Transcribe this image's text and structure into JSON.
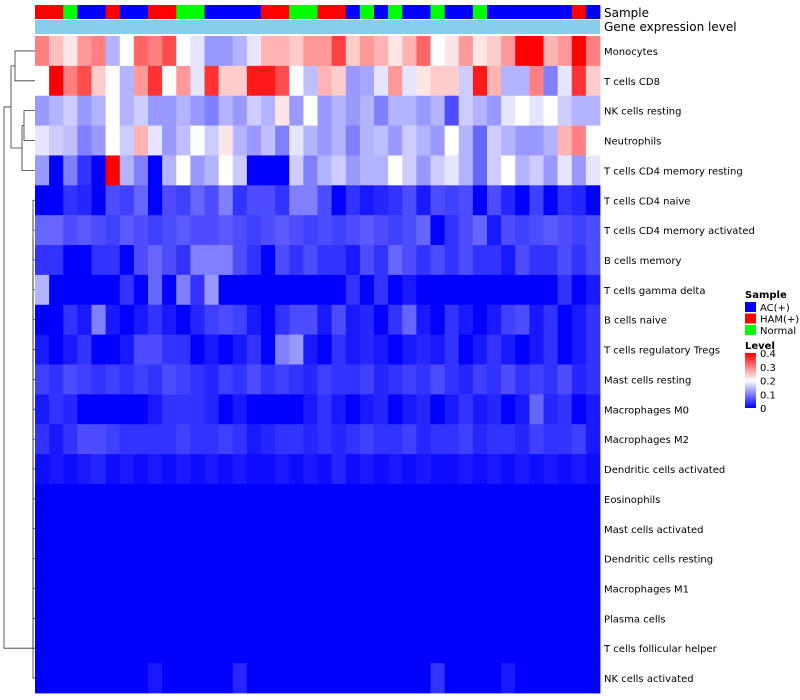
{
  "chart_data": {
    "type": "heatmap",
    "title": "",
    "annotation_rows": [
      "Sample",
      "Gene expression level"
    ],
    "rows": [
      "Monocytes",
      "T cells CD8",
      "NK cells resting",
      "Neutrophils",
      "T cells CD4 memory resting",
      "T cells CD4 naive",
      "T cells CD4 memory activated",
      "B cells memory",
      "T cells gamma delta",
      "B cells naive",
      "T cells regulatory  Tregs",
      "Mast cells resting",
      "Macrophages M0",
      "Macrophages M2",
      "Dendritic cells activated",
      "Eosinophils",
      "Mast cells activated",
      "Dendritic cells resting",
      "Macrophages M1",
      "Plasma cells",
      "T cells follicular helper",
      "NK cells activated"
    ],
    "samples": [
      "HAM(+)",
      "HAM(+)",
      "Normal",
      "AC(+)",
      "AC(+)",
      "HAM(+)",
      "AC(+)",
      "AC(+)",
      "HAM(+)",
      "HAM(+)",
      "Normal",
      "Normal",
      "AC(+)",
      "AC(+)",
      "AC(+)",
      "AC(+)",
      "HAM(+)",
      "HAM(+)",
      "Normal",
      "Normal",
      "HAM(+)",
      "HAM(+)",
      "AC(+)",
      "Normal",
      "AC(+)",
      "Normal",
      "AC(+)",
      "AC(+)",
      "Normal",
      "AC(+)",
      "AC(+)",
      "Normal",
      "AC(+)",
      "AC(+)",
      "AC(+)",
      "AC(+)",
      "AC(+)",
      "AC(+)",
      "HAM(+)",
      "AC(+)"
    ],
    "values": [
      [
        0.3,
        0.25,
        0.22,
        0.28,
        0.3,
        0.14,
        0.2,
        0.32,
        0.3,
        0.34,
        0.2,
        0.18,
        0.12,
        0.12,
        0.14,
        0.18,
        0.26,
        0.26,
        0.24,
        0.28,
        0.28,
        0.35,
        0.24,
        0.28,
        0.26,
        0.22,
        0.26,
        0.32,
        0.2,
        0.22,
        0.28,
        0.22,
        0.24,
        0.28,
        0.4,
        0.4,
        0.26,
        0.28,
        0.4,
        0.3
      ],
      [
        0.2,
        0.4,
        0.3,
        0.34,
        0.24,
        0.2,
        0.14,
        0.28,
        0.36,
        0.2,
        0.28,
        0.18,
        0.36,
        0.24,
        0.24,
        0.38,
        0.38,
        0.34,
        0.2,
        0.15,
        0.26,
        0.24,
        0.12,
        0.13,
        0.18,
        0.28,
        0.18,
        0.22,
        0.24,
        0.24,
        0.16,
        0.38,
        0.26,
        0.14,
        0.14,
        0.3,
        0.1,
        0.18,
        0.36,
        0.24
      ],
      [
        0.12,
        0.14,
        0.16,
        0.12,
        0.14,
        0.2,
        0.14,
        0.16,
        0.12,
        0.12,
        0.14,
        0.12,
        0.1,
        0.14,
        0.12,
        0.16,
        0.14,
        0.22,
        0.12,
        0.2,
        0.12,
        0.14,
        0.12,
        0.14,
        0.1,
        0.14,
        0.14,
        0.12,
        0.14,
        0.06,
        0.16,
        0.14,
        0.12,
        0.18,
        0.2,
        0.18,
        0.2,
        0.16,
        0.14,
        0.14
      ],
      [
        0.18,
        0.16,
        0.15,
        0.1,
        0.12,
        0.2,
        0.16,
        0.26,
        0.18,
        0.12,
        0.15,
        0.2,
        0.16,
        0.22,
        0.14,
        0.12,
        0.15,
        0.1,
        0.18,
        0.14,
        0.12,
        0.14,
        0.1,
        0.14,
        0.15,
        0.12,
        0.16,
        0.14,
        0.12,
        0.2,
        0.14,
        0.08,
        0.16,
        0.14,
        0.12,
        0.12,
        0.14,
        0.26,
        0.3,
        0.2
      ],
      [
        0.12,
        0.0,
        0.1,
        0.04,
        0.0,
        0.4,
        0.14,
        0.1,
        0.0,
        0.14,
        0.2,
        0.12,
        0.14,
        0.2,
        0.16,
        0.0,
        0.0,
        0.0,
        0.16,
        0.1,
        0.14,
        0.16,
        0.12,
        0.14,
        0.14,
        0.2,
        0.16,
        0.12,
        0.16,
        0.18,
        0.14,
        0.08,
        0.16,
        0.2,
        0.14,
        0.16,
        0.12,
        0.18,
        0.12,
        0.18
      ],
      [
        0.0,
        0.0,
        0.04,
        0.03,
        0.0,
        0.06,
        0.05,
        0.08,
        0.0,
        0.06,
        0.05,
        0.08,
        0.06,
        0.1,
        0.04,
        0.06,
        0.06,
        0.04,
        0.1,
        0.1,
        0.06,
        0.0,
        0.04,
        0.02,
        0.03,
        0.04,
        0.06,
        0.02,
        0.06,
        0.05,
        0.06,
        0.0,
        0.06,
        0.03,
        0.0,
        0.05,
        0.0,
        0.04,
        0.03,
        0.0
      ],
      [
        0.08,
        0.08,
        0.06,
        0.07,
        0.06,
        0.05,
        0.07,
        0.06,
        0.05,
        0.06,
        0.07,
        0.06,
        0.06,
        0.07,
        0.06,
        0.05,
        0.06,
        0.07,
        0.06,
        0.05,
        0.06,
        0.05,
        0.06,
        0.07,
        0.06,
        0.05,
        0.06,
        0.08,
        0.0,
        0.04,
        0.06,
        0.08,
        0.02,
        0.06,
        0.05,
        0.06,
        0.07,
        0.06,
        0.05,
        0.06
      ],
      [
        0.04,
        0.04,
        0.0,
        0.0,
        0.04,
        0.04,
        0.0,
        0.06,
        0.08,
        0.06,
        0.04,
        0.1,
        0.1,
        0.1,
        0.06,
        0.04,
        0.0,
        0.06,
        0.04,
        0.06,
        0.04,
        0.04,
        0.02,
        0.06,
        0.04,
        0.08,
        0.06,
        0.04,
        0.06,
        0.04,
        0.06,
        0.04,
        0.04,
        0.02,
        0.06,
        0.04,
        0.04,
        0.06,
        0.04,
        0.06
      ],
      [
        0.14,
        0.0,
        0.0,
        0.0,
        0.0,
        0.0,
        0.04,
        0.0,
        0.08,
        0.0,
        0.1,
        0.04,
        0.12,
        0.0,
        0.0,
        0.0,
        0.0,
        0.0,
        0.0,
        0.0,
        0.0,
        0.0,
        0.04,
        0.0,
        0.04,
        0.0,
        0.02,
        0.0,
        0.0,
        0.0,
        0.0,
        0.0,
        0.0,
        0.0,
        0.0,
        0.0,
        0.0,
        0.04,
        0.0,
        0.02
      ],
      [
        0.0,
        0.0,
        0.04,
        0.02,
        0.1,
        0.02,
        0.0,
        0.02,
        0.04,
        0.02,
        0.0,
        0.03,
        0.05,
        0.06,
        0.05,
        0.02,
        0.0,
        0.04,
        0.06,
        0.06,
        0.02,
        0.06,
        0.02,
        0.03,
        0.0,
        0.04,
        0.08,
        0.02,
        0.0,
        0.04,
        0.02,
        0.0,
        0.02,
        0.05,
        0.06,
        0.02,
        0.04,
        0.0,
        0.02,
        0.04
      ],
      [
        0.02,
        0.0,
        0.02,
        0.04,
        0.0,
        0.0,
        0.02,
        0.06,
        0.06,
        0.04,
        0.04,
        0.0,
        0.02,
        0.0,
        0.02,
        0.04,
        0.0,
        0.1,
        0.12,
        0.02,
        0.0,
        0.04,
        0.02,
        0.03,
        0.02,
        0.0,
        0.02,
        0.03,
        0.02,
        0.04,
        0.0,
        0.02,
        0.04,
        0.02,
        0.0,
        0.02,
        0.04,
        0.0,
        0.02,
        0.04
      ],
      [
        0.05,
        0.04,
        0.06,
        0.05,
        0.04,
        0.05,
        0.04,
        0.05,
        0.04,
        0.06,
        0.05,
        0.04,
        0.03,
        0.05,
        0.04,
        0.06,
        0.04,
        0.05,
        0.04,
        0.03,
        0.05,
        0.04,
        0.04,
        0.05,
        0.03,
        0.04,
        0.05,
        0.04,
        0.06,
        0.04,
        0.03,
        0.05,
        0.04,
        0.06,
        0.04,
        0.05,
        0.04,
        0.06,
        0.03,
        0.04
      ],
      [
        0.02,
        0.04,
        0.03,
        0.0,
        0.0,
        0.0,
        0.0,
        0.0,
        0.02,
        0.04,
        0.04,
        0.04,
        0.03,
        0.0,
        0.02,
        0.0,
        0.0,
        0.0,
        0.0,
        0.02,
        0.04,
        0.02,
        0.0,
        0.02,
        0.03,
        0.0,
        0.02,
        0.03,
        0.0,
        0.02,
        0.04,
        0.02,
        0.03,
        0.0,
        0.02,
        0.08,
        0.03,
        0.04,
        0.0,
        0.02
      ],
      [
        0.04,
        0.02,
        0.04,
        0.06,
        0.06,
        0.05,
        0.04,
        0.04,
        0.04,
        0.04,
        0.05,
        0.04,
        0.04,
        0.05,
        0.04,
        0.02,
        0.03,
        0.04,
        0.04,
        0.03,
        0.04,
        0.03,
        0.04,
        0.05,
        0.04,
        0.04,
        0.05,
        0.03,
        0.04,
        0.04,
        0.05,
        0.03,
        0.04,
        0.04,
        0.03,
        0.05,
        0.04,
        0.04,
        0.05,
        0.02
      ],
      [
        0.01,
        0.02,
        0.01,
        0.02,
        0.03,
        0.01,
        0.02,
        0.01,
        0.02,
        0.01,
        0.02,
        0.01,
        0.02,
        0.01,
        0.02,
        0.01,
        0.01,
        0.02,
        0.01,
        0.02,
        0.01,
        0.03,
        0.01,
        0.02,
        0.01,
        0.02,
        0.01,
        0.02,
        0.01,
        0.01,
        0.02,
        0.01,
        0.02,
        0.01,
        0.02,
        0.01,
        0.02,
        0.01,
        0.02,
        0.01
      ],
      [
        0.0,
        0.0,
        0.0,
        0.0,
        0.0,
        0.0,
        0.0,
        0.0,
        0.0,
        0.0,
        0.0,
        0.0,
        0.0,
        0.0,
        0.0,
        0.0,
        0.0,
        0.0,
        0.0,
        0.0,
        0.0,
        0.0,
        0.0,
        0.0,
        0.0,
        0.0,
        0.0,
        0.0,
        0.0,
        0.0,
        0.0,
        0.0,
        0.0,
        0.0,
        0.0,
        0.0,
        0.0,
        0.0,
        0.0,
        0.0
      ],
      [
        0.0,
        0.0,
        0.0,
        0.0,
        0.0,
        0.0,
        0.0,
        0.0,
        0.0,
        0.0,
        0.0,
        0.0,
        0.0,
        0.0,
        0.0,
        0.0,
        0.0,
        0.0,
        0.0,
        0.0,
        0.0,
        0.0,
        0.0,
        0.0,
        0.0,
        0.0,
        0.0,
        0.0,
        0.0,
        0.0,
        0.0,
        0.0,
        0.0,
        0.0,
        0.0,
        0.0,
        0.0,
        0.0,
        0.0,
        0.0
      ],
      [
        0.0,
        0.0,
        0.0,
        0.0,
        0.0,
        0.0,
        0.0,
        0.0,
        0.0,
        0.0,
        0.0,
        0.0,
        0.0,
        0.0,
        0.0,
        0.0,
        0.0,
        0.0,
        0.0,
        0.0,
        0.0,
        0.0,
        0.0,
        0.0,
        0.0,
        0.0,
        0.0,
        0.0,
        0.0,
        0.0,
        0.0,
        0.0,
        0.0,
        0.0,
        0.0,
        0.0,
        0.0,
        0.0,
        0.0,
        0.0
      ],
      [
        0.0,
        0.0,
        0.0,
        0.0,
        0.0,
        0.0,
        0.0,
        0.0,
        0.0,
        0.0,
        0.0,
        0.0,
        0.0,
        0.0,
        0.0,
        0.0,
        0.0,
        0.0,
        0.0,
        0.0,
        0.0,
        0.0,
        0.0,
        0.0,
        0.0,
        0.0,
        0.0,
        0.0,
        0.0,
        0.0,
        0.0,
        0.0,
        0.0,
        0.0,
        0.0,
        0.0,
        0.0,
        0.0,
        0.0,
        0.0
      ],
      [
        0.0,
        0.0,
        0.0,
        0.0,
        0.0,
        0.0,
        0.0,
        0.0,
        0.0,
        0.0,
        0.0,
        0.0,
        0.0,
        0.0,
        0.0,
        0.0,
        0.0,
        0.0,
        0.0,
        0.0,
        0.0,
        0.0,
        0.0,
        0.0,
        0.0,
        0.0,
        0.0,
        0.0,
        0.0,
        0.0,
        0.0,
        0.0,
        0.0,
        0.0,
        0.0,
        0.0,
        0.0,
        0.0,
        0.0,
        0.0
      ],
      [
        0.0,
        0.0,
        0.0,
        0.0,
        0.0,
        0.0,
        0.0,
        0.0,
        0.0,
        0.0,
        0.0,
        0.0,
        0.0,
        0.0,
        0.0,
        0.0,
        0.0,
        0.0,
        0.0,
        0.0,
        0.0,
        0.0,
        0.0,
        0.0,
        0.0,
        0.0,
        0.0,
        0.0,
        0.0,
        0.0,
        0.0,
        0.0,
        0.0,
        0.0,
        0.0,
        0.0,
        0.0,
        0.0,
        0.0,
        0.0
      ],
      [
        0.0,
        0.0,
        0.0,
        0.0,
        0.0,
        0.0,
        0.0,
        0.0,
        0.02,
        0.0,
        0.0,
        0.0,
        0.0,
        0.0,
        0.03,
        0.0,
        0.0,
        0.0,
        0.0,
        0.0,
        0.0,
        0.0,
        0.0,
        0.0,
        0.0,
        0.0,
        0.0,
        0.0,
        0.04,
        0.0,
        0.0,
        0.0,
        0.0,
        0.02,
        0.0,
        0.0,
        0.0,
        0.0,
        0.0,
        0.0
      ]
    ],
    "legend": {
      "sample": {
        "title": "Sample",
        "items": [
          {
            "label": "AC(+)",
            "color": "#0000ff"
          },
          {
            "label": "HAM(+)",
            "color": "#ff0000"
          },
          {
            "label": "Normal",
            "color": "#00ff00"
          }
        ]
      },
      "level": {
        "title": "Level",
        "ticks": [
          "0.4",
          "0.3",
          "0.2",
          "0.1",
          "0"
        ],
        "range": [
          0,
          0.4
        ]
      }
    },
    "colors": {
      "low": "#0000ff",
      "mid": "#ffffff",
      "high": "#ff0000",
      "expression_bar": "#87ceeb"
    }
  }
}
